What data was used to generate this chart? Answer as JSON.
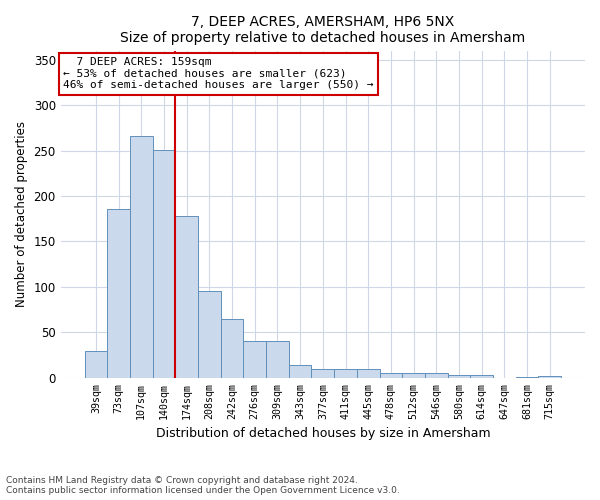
{
  "title": "7, DEEP ACRES, AMERSHAM, HP6 5NX",
  "subtitle": "Size of property relative to detached houses in Amersham",
  "xlabel": "Distribution of detached houses by size in Amersham",
  "ylabel": "Number of detached properties",
  "bar_labels": [
    "39sqm",
    "73sqm",
    "107sqm",
    "140sqm",
    "174sqm",
    "208sqm",
    "242sqm",
    "276sqm",
    "309sqm",
    "343sqm",
    "377sqm",
    "411sqm",
    "445sqm",
    "478sqm",
    "512sqm",
    "546sqm",
    "580sqm",
    "614sqm",
    "647sqm",
    "681sqm",
    "715sqm"
  ],
  "bar_values": [
    30,
    186,
    266,
    251,
    178,
    95,
    65,
    40,
    40,
    14,
    10,
    10,
    10,
    5,
    5,
    5,
    3,
    3,
    0,
    1,
    2
  ],
  "bar_color": "#cad9ec",
  "bar_edgecolor": "#6090bb",
  "vline_color": "#cc0000",
  "vline_pos": 3.5,
  "annotation_title": "7 DEEP ACRES: 159sqm",
  "annotation_line1": "← 53% of detached houses are smaller (623)",
  "annotation_line2": "46% of semi-detached houses are larger (550) →",
  "annotation_box_edgecolor": "#cc0000",
  "ylim": [
    0,
    360
  ],
  "yticks": [
    0,
    50,
    100,
    150,
    200,
    250,
    300,
    350
  ],
  "footnote1": "Contains HM Land Registry data © Crown copyright and database right 2024.",
  "footnote2": "Contains public sector information licensed under the Open Government Licence v3.0.",
  "bg_color": "#ffffff",
  "plot_bg_color": "#ffffff",
  "grid_color": "#d0d8e8"
}
